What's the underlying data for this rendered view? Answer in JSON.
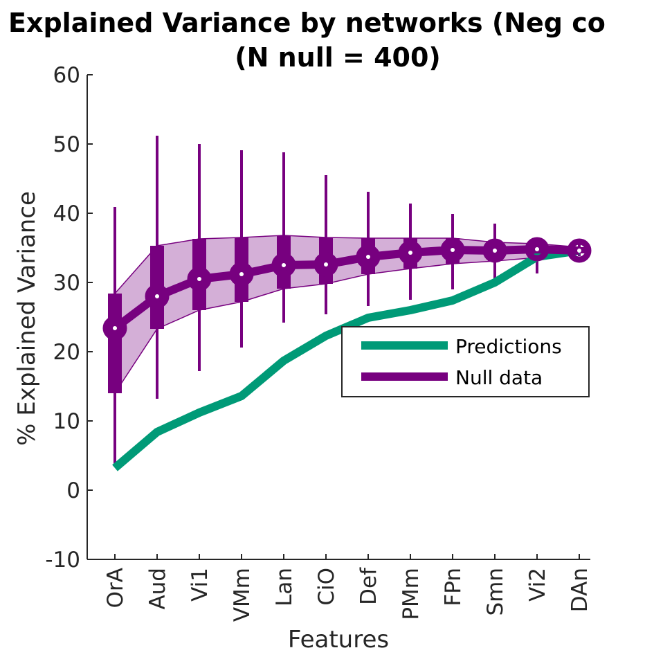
{
  "chart_data": {
    "type": "line",
    "title_line1": "Explained Variance by networks (Neg co",
    "title_line2": "(N null = 400)",
    "xlabel": "Features",
    "ylabel": "% Explained Variance",
    "ylim": [
      -10,
      60
    ],
    "yticks": [
      -10,
      0,
      10,
      20,
      30,
      40,
      50,
      60
    ],
    "categories": [
      "OrA",
      "Aud",
      "Vi1",
      "VMm",
      "Lan",
      "CiO",
      "Def",
      "PMm",
      "FPn",
      "Smn",
      "Vi2",
      "DAn"
    ],
    "grid": false,
    "legend_position": "right",
    "colors": {
      "predictions": "#009a77",
      "null": "#77007f",
      "band_fill": "#d4afd7",
      "axis": "#262626"
    },
    "series": [
      {
        "name": "Predictions",
        "values": [
          3.2,
          8.4,
          11.2,
          13.6,
          18.7,
          22.3,
          24.9,
          26.0,
          27.4,
          30.0,
          33.7,
          34.6
        ]
      },
      {
        "name": "Null data",
        "values": [
          23.4,
          28.0,
          30.5,
          31.2,
          32.5,
          32.6,
          33.7,
          34.3,
          34.7,
          34.6,
          34.8,
          34.6
        ],
        "iqr_low": [
          14.0,
          23.3,
          26.0,
          27.2,
          29.1,
          29.8,
          31.2,
          32.0,
          32.7,
          33.1,
          33.6,
          34.2
        ],
        "iqr_high": [
          28.4,
          35.3,
          36.3,
          36.5,
          36.8,
          36.5,
          36.4,
          36.4,
          36.4,
          35.8,
          35.6,
          35.1
        ],
        "min": [
          3.5,
          13.2,
          17.2,
          20.6,
          24.2,
          25.4,
          26.6,
          27.5,
          29.0,
          30.2,
          31.3,
          33.8
        ],
        "max": [
          40.9,
          51.2,
          50.0,
          49.1,
          48.8,
          45.5,
          43.1,
          41.4,
          39.9,
          38.5,
          36.3,
          35.6
        ]
      }
    ]
  }
}
